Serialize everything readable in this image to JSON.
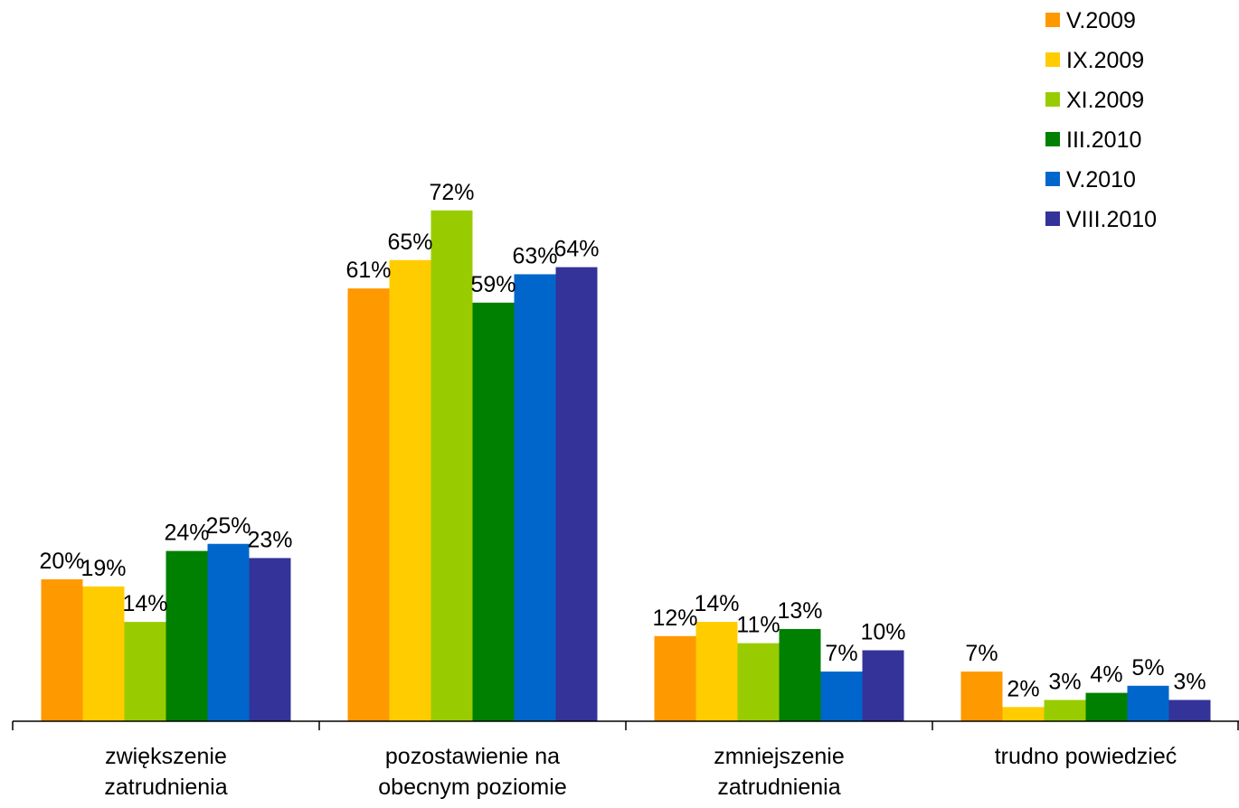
{
  "chart_data": {
    "type": "bar",
    "title": "",
    "xlabel": "",
    "ylabel": "",
    "ylim": [
      0,
      80
    ],
    "grid": false,
    "legend_position": "top-right",
    "categories": [
      [
        "zwiększenie",
        "zatrudnienia"
      ],
      [
        "pozostawienie na",
        "obecnym poziomie"
      ],
      [
        "zmniejszenie",
        "zatrudnienia"
      ],
      [
        "trudno powiedzieć"
      ]
    ],
    "series": [
      {
        "name": "V.2009",
        "color": "#ff9900",
        "values": [
          20,
          61,
          12,
          7
        ],
        "labels": [
          "20%",
          "61%",
          "12%",
          "7%"
        ]
      },
      {
        "name": "IX.2009",
        "color": "#ffcc00",
        "values": [
          19,
          65,
          14,
          2
        ],
        "labels": [
          "19%",
          "65%",
          "14%",
          "2%"
        ]
      },
      {
        "name": "XI.2009",
        "color": "#99cc00",
        "values": [
          14,
          72,
          11,
          3
        ],
        "labels": [
          "14%",
          "72%",
          "11%",
          "3%"
        ]
      },
      {
        "name": "III.2010",
        "color": "#008000",
        "values": [
          24,
          59,
          13,
          4
        ],
        "labels": [
          "24%",
          "59%",
          "13%",
          "4%"
        ]
      },
      {
        "name": "V.2010",
        "color": "#0066cc",
        "values": [
          25,
          63,
          7,
          5
        ],
        "labels": [
          "25%",
          "63%",
          "7%",
          "5%"
        ]
      },
      {
        "name": "VIII.2010",
        "color": "#333399",
        "values": [
          23,
          64,
          10,
          3
        ],
        "labels": [
          "23%",
          "64%",
          "10%",
          "3%"
        ]
      }
    ]
  }
}
